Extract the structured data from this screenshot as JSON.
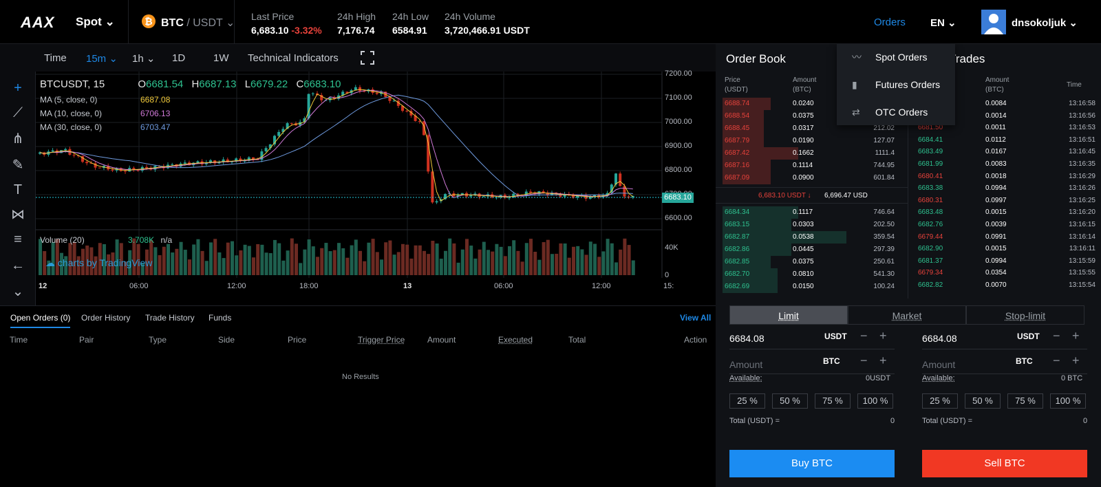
{
  "header": {
    "logo": "AAX",
    "market_type": "Spot ⌄",
    "pair_base": "BTC",
    "pair_quote": " / USDT ⌄",
    "stats": [
      {
        "label": "Last Price",
        "value": "6,683.10",
        "change": "-3.32%"
      },
      {
        "label": "24h High",
        "value": "7,176.74"
      },
      {
        "label": "24h Low",
        "value": "6584.91"
      },
      {
        "label": "24h Volume",
        "value": "3,720,466.91 USDT"
      }
    ],
    "orders": "Orders",
    "language": "EN ⌄",
    "username": "dnsokoljuk ⌄"
  },
  "chart_toolbar": {
    "time": "Time",
    "intervals": [
      "15m ⌄",
      "1h ⌄",
      "1D",
      "1W"
    ],
    "indicators": "Technical Indicators"
  },
  "chart": {
    "symbol": "BTCUSDT, 15",
    "ohlc": {
      "o_label": "O",
      "o": "6681.54",
      "h_label": "H",
      "h": "6687.13",
      "l_label": "L",
      "l": "6679.22",
      "c_label": "C",
      "c": "6683.10"
    },
    "ma": [
      {
        "label": "MA (5, close, 0)",
        "value": "6687.08",
        "color": "#f0c93a"
      },
      {
        "label": "MA (10, close, 0)",
        "value": "6706.13",
        "color": "#d07ad8"
      },
      {
        "label": "MA (30, close, 0)",
        "value": "6703.47",
        "color": "#6f9be0"
      }
    ],
    "price_ticks": [
      "7200.00",
      "7100.00",
      "7000.00",
      "6900.00",
      "6800.00",
      "6700.00",
      "6600.00"
    ],
    "current_price": "6683.10",
    "volume_label": "Volume (20)",
    "volume_value": "3.708K",
    "volume_na": "n/a",
    "volume_ticks": [
      "40K",
      "0"
    ],
    "time_ticks": [
      "12",
      "06:00",
      "12:00",
      "18:00",
      "13",
      "06:00",
      "12:00",
      "15:"
    ],
    "watermark": "charts by TradingView"
  },
  "orders_panel": {
    "tabs": [
      "Open Orders (0)",
      "Order History",
      "Trade History",
      "Funds"
    ],
    "view_all": "View All",
    "columns": [
      "Time",
      "Pair",
      "Type",
      "Side",
      "Price",
      "Trigger Price",
      "Amount",
      "Executed",
      "Total",
      "Action"
    ],
    "empty": "No Results"
  },
  "order_book": {
    "title": "Order Book",
    "head_price": "Price",
    "head_price_unit": "(USDT)",
    "head_amount": "Amount",
    "head_amount_unit": "(BTC)",
    "asks": [
      {
        "price": "6688.74",
        "amount": "0.0240",
        "total": ""
      },
      {
        "price": "6688.54",
        "amount": "0.0375",
        "total": ""
      },
      {
        "price": "6688.45",
        "amount": "0.0317",
        "total": "212.02"
      },
      {
        "price": "6687.79",
        "amount": "0.0190",
        "total": "127.07"
      },
      {
        "price": "6687.42",
        "amount": "0.1662",
        "total": "1111.4"
      },
      {
        "price": "6687.16",
        "amount": "0.1114",
        "total": "744.95"
      },
      {
        "price": "6687.09",
        "amount": "0.0900",
        "total": "601.84"
      }
    ],
    "mid_price": "6,683.10 USDT ↓",
    "mid_usd": "6,696.47 USD",
    "bids": [
      {
        "price": "6684.34",
        "amount": "0.1117",
        "total": "746.64"
      },
      {
        "price": "6683.15",
        "amount": "0.0303",
        "total": "202.50"
      },
      {
        "price": "6682.87",
        "amount": "0.0538",
        "total": "359.54"
      },
      {
        "price": "6682.86",
        "amount": "0.0445",
        "total": "297.39"
      },
      {
        "price": "6682.85",
        "amount": "0.0375",
        "total": "250.61"
      },
      {
        "price": "6682.70",
        "amount": "0.0810",
        "total": "541.30"
      },
      {
        "price": "6682.69",
        "amount": "0.0150",
        "total": "100.24"
      }
    ]
  },
  "recent_trades": {
    "title": "t Trades",
    "head_amount": "Amount",
    "head_amount_unit": "(BTC)",
    "head_time": "Time",
    "rows": [
      {
        "price": "",
        "amount": "0.0084",
        "time": "13:16:58",
        "side": "buy"
      },
      {
        "price": "",
        "amount": "0.0014",
        "time": "13:16:56",
        "side": "buy"
      },
      {
        "price": "6681.50",
        "amount": "0.0011",
        "time": "13:16:53",
        "side": "sell"
      },
      {
        "price": "6684.41",
        "amount": "0.0112",
        "time": "13:16:51",
        "side": "buy"
      },
      {
        "price": "6683.49",
        "amount": "0.0167",
        "time": "13:16:45",
        "side": "buy"
      },
      {
        "price": "6681.99",
        "amount": "0.0083",
        "time": "13:16:35",
        "side": "buy"
      },
      {
        "price": "6680.41",
        "amount": "0.0018",
        "time": "13:16:29",
        "side": "sell"
      },
      {
        "price": "6683.38",
        "amount": "0.0994",
        "time": "13:16:26",
        "side": "buy"
      },
      {
        "price": "6680.31",
        "amount": "0.0997",
        "time": "13:16:25",
        "side": "sell"
      },
      {
        "price": "6683.48",
        "amount": "0.0015",
        "time": "13:16:20",
        "side": "buy"
      },
      {
        "price": "6682.76",
        "amount": "0.0039",
        "time": "13:16:15",
        "side": "buy"
      },
      {
        "price": "6679.44",
        "amount": "0.0991",
        "time": "13:16:14",
        "side": "sell"
      },
      {
        "price": "6682.90",
        "amount": "0.0015",
        "time": "13:16:11",
        "side": "buy"
      },
      {
        "price": "6681.37",
        "amount": "0.0994",
        "time": "13:15:59",
        "side": "buy"
      },
      {
        "price": "6679.34",
        "amount": "0.0354",
        "time": "13:15:55",
        "side": "sell"
      },
      {
        "price": "6682.82",
        "amount": "0.0070",
        "time": "13:15:54",
        "side": "buy"
      }
    ]
  },
  "trade_form": {
    "tabs": [
      "Limit",
      "Market",
      "Stop-limit"
    ],
    "price_value": "6684.08",
    "price_unit": "USDT",
    "amount_placeholder": "Amount",
    "amount_unit": "BTC",
    "available_label": "Available:",
    "buy_available": "0USDT",
    "sell_available": "0 BTC",
    "pcts": [
      "25 %",
      "50 %",
      "75 %",
      "100 %"
    ],
    "total_label": "Total (USDT) =",
    "total_value": "0",
    "buy_label": "Buy  BTC",
    "sell_label": "Sell  BTC"
  },
  "orders_dropdown": {
    "items": [
      {
        "label": "Spot Orders",
        "icon": "line-chart-icon"
      },
      {
        "label": "Futures Orders",
        "icon": "bar-chart-icon"
      },
      {
        "label": "OTC Orders",
        "icon": "swap-icon"
      }
    ]
  },
  "colors": {
    "accent": "#1e88e5",
    "up": "#2ec18f",
    "down": "#e8423b",
    "buy": "#1b8cf2",
    "sell": "#f13823"
  }
}
